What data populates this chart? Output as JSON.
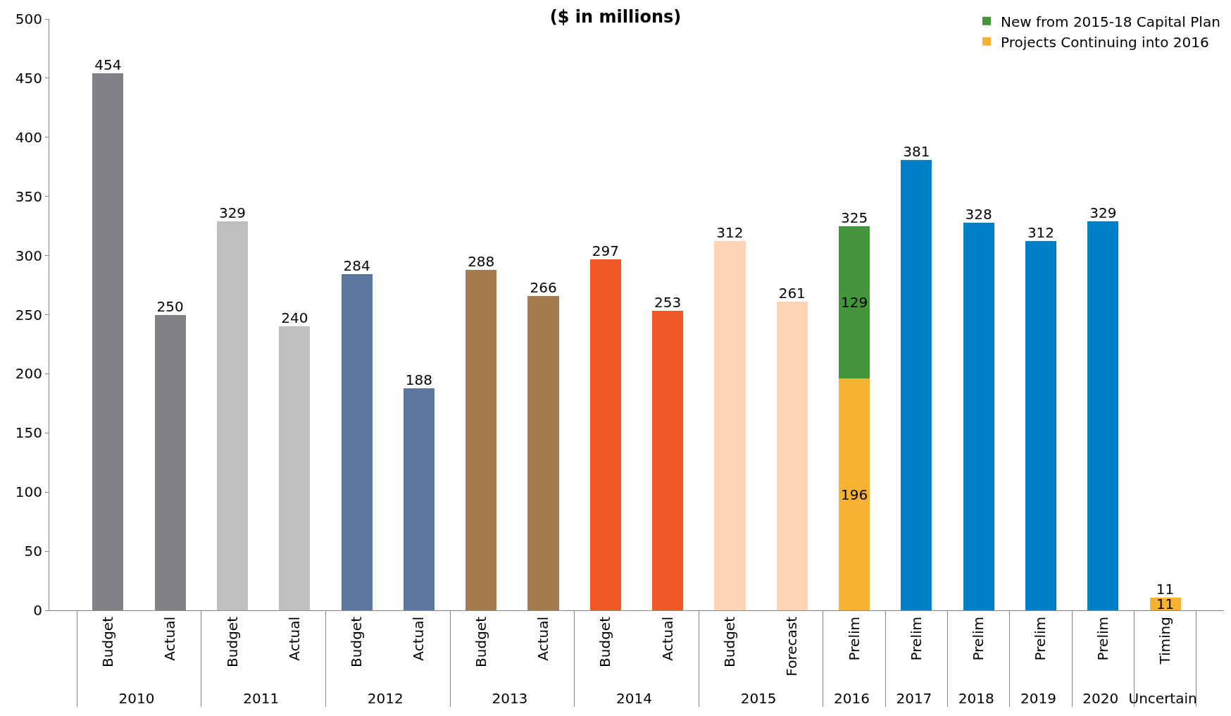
{
  "chart_data": {
    "type": "bar",
    "title": "($ in millions)",
    "stacked": true,
    "categories": [
      [
        "2010",
        "Budget"
      ],
      [
        null,
        "Actual"
      ],
      [
        "2011",
        "Budget"
      ],
      [
        null,
        "Actual"
      ],
      [
        "2012",
        "Budget"
      ],
      [
        null,
        "Actual"
      ],
      [
        "2013",
        "Budget"
      ],
      [
        null,
        "Actual"
      ],
      [
        "2014",
        "Budget"
      ],
      [
        null,
        "Actual"
      ],
      [
        "2015",
        "Budget"
      ],
      [
        null,
        "Forecast"
      ],
      [
        "2016",
        "Prelim"
      ],
      [
        "2017",
        "Prelim"
      ],
      [
        "2018",
        "Prelim"
      ],
      [
        "2019",
        "Prelim"
      ],
      [
        "2020",
        "Prelim"
      ],
      [
        "Uncertain",
        "Timing"
      ]
    ],
    "series": [
      {
        "colors": [
          "#808285",
          "#808285",
          "#bfbfbf",
          "#bfbfbf",
          "#5b779f",
          "#5b779f",
          "#a57c50",
          "#a57c50",
          "#f05a28",
          "#f05a28",
          "#fbd5b5",
          "#fbd5b5",
          "#f7b133",
          "#0080c6",
          "#0080c6",
          "#0080c6",
          "#0080c6",
          "#f7b133"
        ],
        "values": [
          454,
          250,
          329,
          240,
          284,
          188,
          288,
          266,
          297,
          253,
          312,
          261,
          null,
          381,
          328,
          312,
          329,
          null
        ]
      },
      {
        "name": "Projects Continuing into 2016",
        "color": "#f7b133",
        "values": [
          null,
          null,
          null,
          null,
          null,
          null,
          null,
          null,
          null,
          null,
          null,
          null,
          196,
          null,
          null,
          null,
          null,
          11
        ],
        "value_labels": [
          null,
          null,
          null,
          null,
          null,
          null,
          null,
          null,
          null,
          null,
          null,
          null,
          "196",
          null,
          null,
          null,
          null,
          "11"
        ]
      },
      {
        "name": "New from 2015-18 Capital Plan",
        "color": "#43943a",
        "values": [
          null,
          null,
          null,
          null,
          null,
          null,
          null,
          null,
          null,
          null,
          null,
          null,
          129,
          null,
          null,
          null,
          null,
          null
        ],
        "value_labels": [
          null,
          null,
          null,
          null,
          null,
          null,
          null,
          null,
          null,
          null,
          null,
          null,
          "129",
          null,
          null,
          null,
          null,
          null
        ]
      }
    ],
    "totals": [
      "454",
      "250",
      "329",
      "240",
      "284",
      "188",
      "288",
      "266",
      "297",
      "253",
      "312",
      "261",
      "325",
      "381",
      "328",
      "312",
      "329",
      "11"
    ],
    "ylim": [
      0,
      500
    ],
    "yticks": [
      0,
      50,
      100,
      150,
      200,
      250,
      300,
      350,
      400,
      450,
      500
    ],
    "legend": "top right"
  }
}
